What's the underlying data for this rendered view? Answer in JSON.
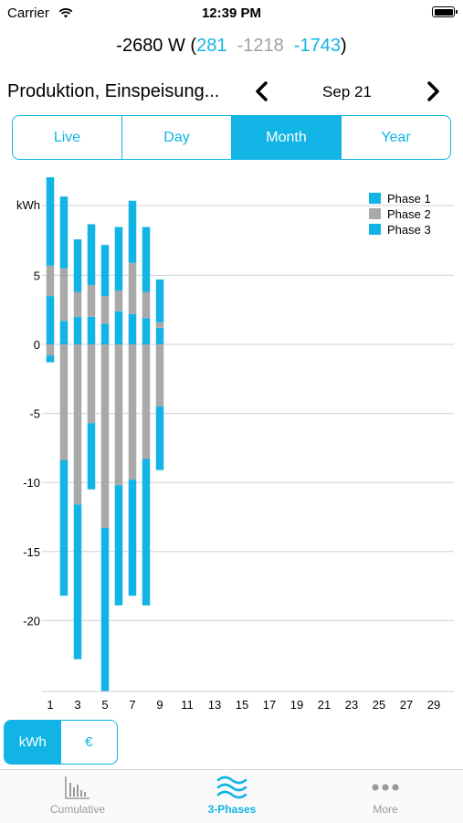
{
  "status_bar": {
    "carrier": "Carrier",
    "time": "12:39 PM"
  },
  "power": {
    "total": "-2680 W (",
    "phase1": "281",
    "phase2": "-1218",
    "phase3": "-1743",
    "close": ")"
  },
  "nav": {
    "title": "Produktion, Einspeisung...",
    "date": "Sep 21"
  },
  "period_tabs": [
    {
      "label": "Live",
      "active": false
    },
    {
      "label": "Day",
      "active": false
    },
    {
      "label": "Month",
      "active": true
    },
    {
      "label": "Year",
      "active": false
    }
  ],
  "unit_toggle": {
    "kwh": "kWh",
    "euro": "€"
  },
  "tab_bar": {
    "cumulative": "Cumulative",
    "phases": "3-Phases",
    "more": "More"
  },
  "colors": {
    "accent": "#11b4e4",
    "phase1": "#11b4e4",
    "phase2": "#a9a9a9",
    "phase3": "#11b4e4",
    "grid": "#d0d0d0"
  },
  "chart_data": {
    "type": "bar",
    "stacked": true,
    "ylabel": "kWh",
    "ylim": [
      -25,
      12.5
    ],
    "yticks": [
      5,
      0,
      -5,
      -10,
      -15,
      -20
    ],
    "x": [
      1,
      2,
      3,
      4,
      5,
      6,
      7,
      8,
      9,
      10,
      11,
      12,
      13,
      14,
      15,
      16,
      17,
      18,
      19,
      20,
      21,
      22,
      23,
      24,
      25,
      26,
      27,
      28,
      29,
      30
    ],
    "xticks": [
      1,
      3,
      5,
      7,
      9,
      11,
      13,
      15,
      17,
      19,
      21,
      23,
      25,
      27,
      29
    ],
    "legend_position": "top-right",
    "series": [
      {
        "name": "Phase 1",
        "positive": [
          3.5,
          1.7,
          2.0,
          2.0,
          1.5,
          2.4,
          2.2,
          1.9,
          1.2
        ],
        "negative": [
          0,
          0,
          0,
          0,
          0,
          0,
          0,
          0,
          0
        ]
      },
      {
        "name": "Phase 2",
        "positive": [
          2.2,
          3.8,
          1.8,
          2.3,
          2.0,
          1.5,
          3.7,
          1.9,
          0.4
        ],
        "negative": [
          -0.8,
          -8.4,
          -11.6,
          -5.7,
          -13.3,
          -10.2,
          -9.8,
          -8.3,
          -4.5
        ]
      },
      {
        "name": "Phase 3",
        "positive": [
          6.4,
          5.2,
          3.8,
          4.4,
          3.7,
          4.6,
          4.5,
          4.7,
          3.1
        ],
        "negative": [
          -0.5,
          -9.8,
          -11.2,
          -4.8,
          -11.8,
          -8.7,
          -8.4,
          -10.6,
          -4.6
        ]
      }
    ]
  }
}
